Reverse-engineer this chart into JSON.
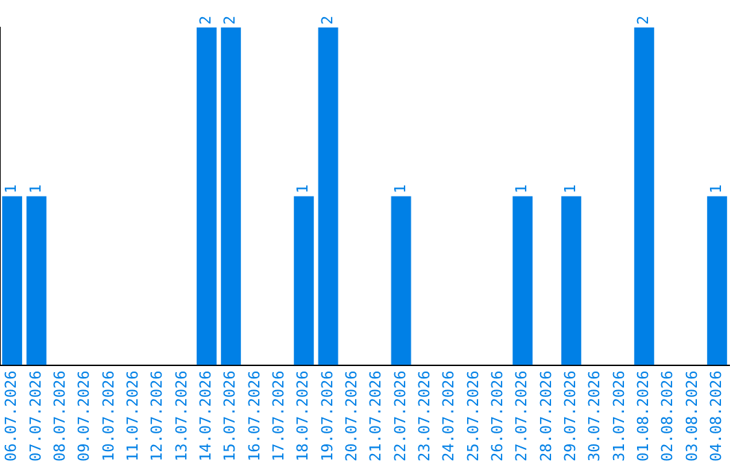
{
  "chart_data": {
    "type": "bar",
    "categories": [
      "06.07.2026",
      "07.07.2026",
      "08.07.2026",
      "09.07.2026",
      "10.07.2026",
      "11.07.2026",
      "12.07.2026",
      "13.07.2026",
      "14.07.2026",
      "15.07.2026",
      "16.07.2026",
      "17.07.2026",
      "18.07.2026",
      "19.07.2026",
      "20.07.2026",
      "21.07.2026",
      "22.07.2026",
      "23.07.2026",
      "24.07.2026",
      "25.07.2026",
      "26.07.2026",
      "27.07.2026",
      "28.07.2026",
      "29.07.2026",
      "30.07.2026",
      "31.07.2026",
      "01.08.2026",
      "02.08.2026",
      "03.08.2026",
      "04.08.2026"
    ],
    "values": [
      1,
      1,
      0,
      0,
      0,
      0,
      0,
      0,
      2,
      2,
      0,
      0,
      1,
      2,
      0,
      0,
      1,
      0,
      0,
      0,
      0,
      1,
      0,
      1,
      0,
      0,
      2,
      0,
      0,
      1
    ],
    "value_labels": [
      "1",
      "1",
      null,
      null,
      null,
      null,
      null,
      null,
      "2",
      "2",
      null,
      null,
      "1",
      "2",
      null,
      null,
      "1",
      null,
      null,
      null,
      null,
      "1",
      null,
      "1",
      null,
      null,
      "2",
      null,
      null,
      "1"
    ],
    "color": "#0080e6",
    "ylim": [
      0,
      2
    ],
    "tick_labels": "x",
    "grid": false,
    "legend": false
  }
}
